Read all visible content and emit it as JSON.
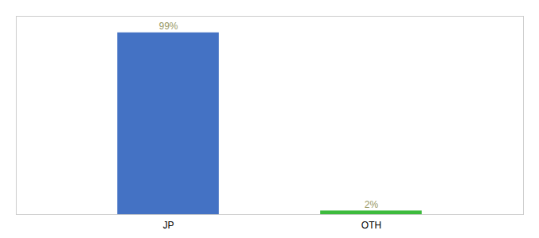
{
  "chart_data": {
    "type": "bar",
    "categories": [
      "JP",
      "OTH"
    ],
    "values": [
      99,
      2
    ],
    "value_labels": [
      "99%",
      "2%"
    ],
    "colors": [
      "#4472c4",
      "#3dbb3d"
    ],
    "ylim": [
      0,
      108
    ],
    "data_labels": true,
    "tick_labels": "x"
  }
}
